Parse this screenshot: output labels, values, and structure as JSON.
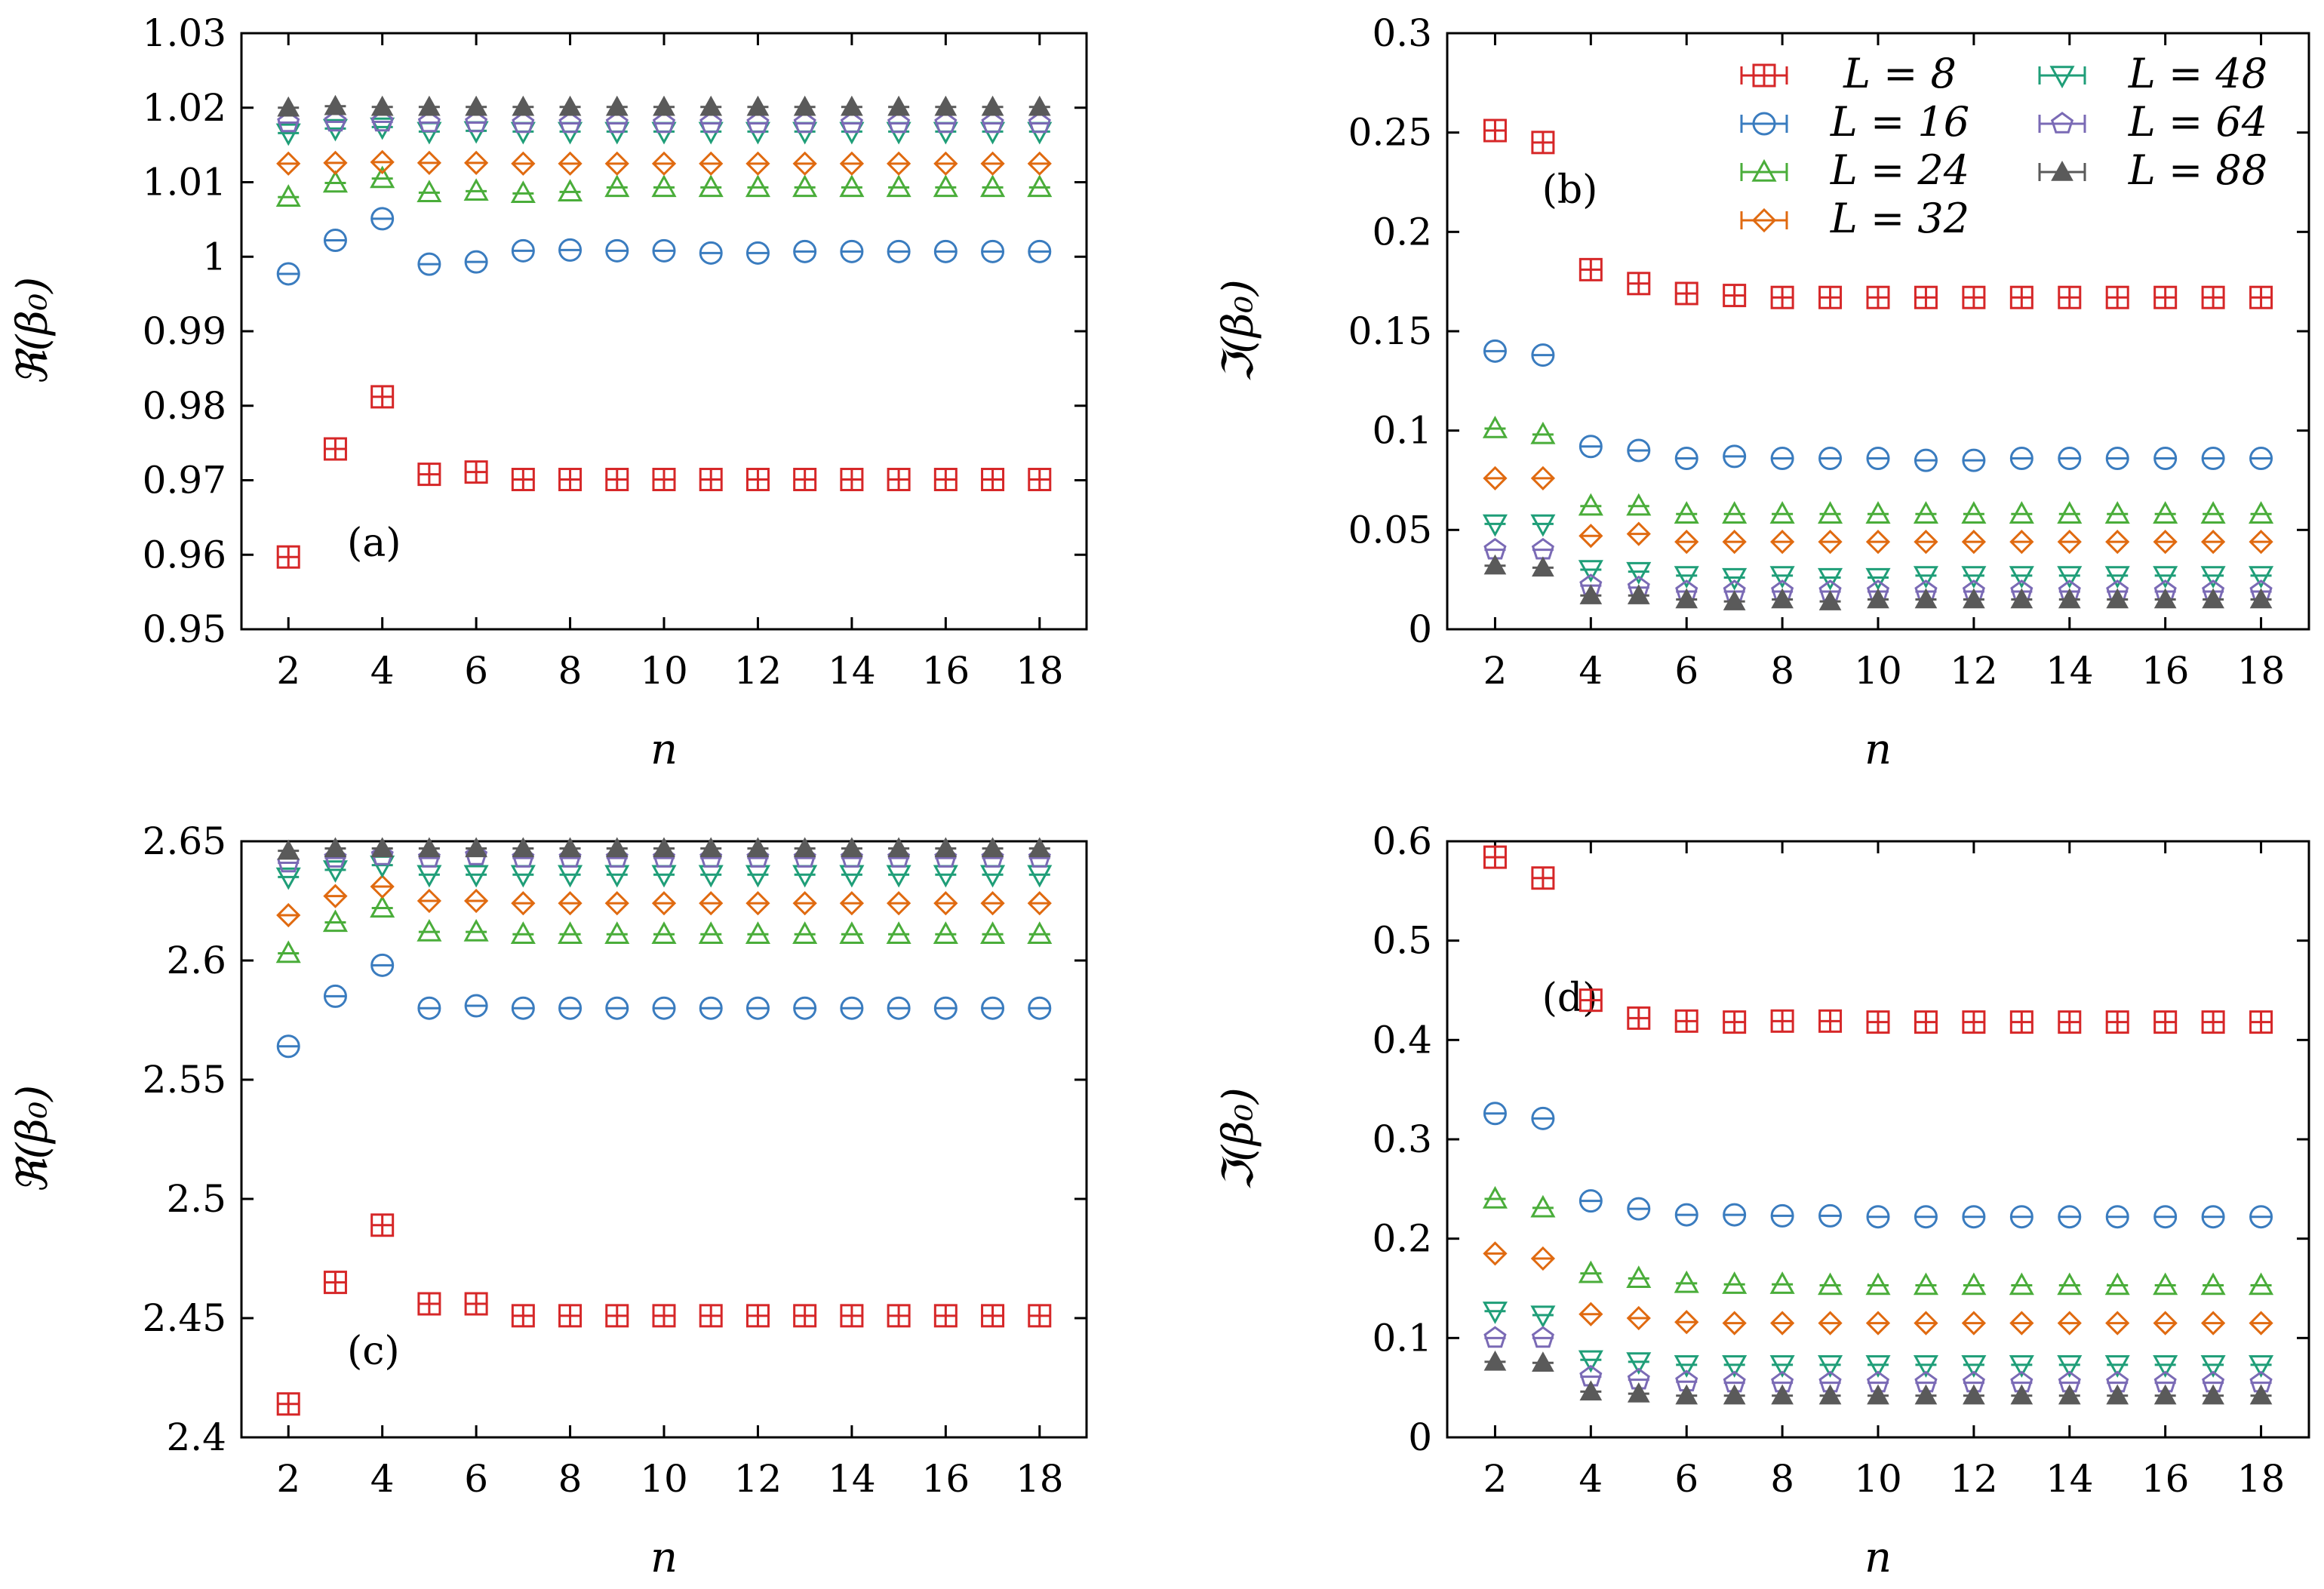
{
  "chart_data": [
    {
      "id": "a",
      "type": "scatter",
      "panel_label": "(a)",
      "xlabel": "n",
      "ylabel": "ℜ(β₀)",
      "xlim": [
        1,
        19
      ],
      "ylim": [
        0.95,
        1.03
      ],
      "xticks": [
        2,
        4,
        6,
        8,
        10,
        12,
        14,
        16,
        18
      ],
      "yticks": [
        0.95,
        0.96,
        0.97,
        0.98,
        0.99,
        1.0,
        1.01,
        1.02,
        1.03
      ],
      "ytick_labels": [
        "0.95",
        "0.96",
        "0.97",
        "0.98",
        "0.99",
        "1",
        "1.01",
        "1.02",
        "1.03"
      ],
      "label_position": "bottom-left",
      "x": [
        2,
        3,
        4,
        5,
        6,
        7,
        8,
        9,
        10,
        11,
        12,
        13,
        14,
        15,
        16,
        17,
        18
      ],
      "series": [
        {
          "name": "L = 8",
          "values": [
            0.9597,
            0.9742,
            0.9812,
            0.9708,
            0.9711,
            0.9701,
            0.9701,
            0.9701,
            0.9701,
            0.9701,
            0.9701,
            0.9701,
            0.9701,
            0.9701,
            0.9701,
            0.9701,
            0.9701
          ]
        },
        {
          "name": "L = 16",
          "values": [
            0.9977,
            1.0022,
            1.0051,
            0.999,
            0.9993,
            1.0008,
            1.0009,
            1.0008,
            1.0008,
            1.0005,
            1.0005,
            1.0007,
            1.0007,
            1.0007,
            1.0007,
            1.0007,
            1.0007
          ]
        },
        {
          "name": "L = 24",
          "values": [
            1.008,
            1.0099,
            1.0105,
            1.0086,
            1.0088,
            1.0085,
            1.0087,
            1.0093,
            1.0093,
            1.0093,
            1.0093,
            1.0093,
            1.0093,
            1.0093,
            1.0093,
            1.0093,
            1.0093
          ]
        },
        {
          "name": "L = 32",
          "values": [
            1.0125,
            1.0126,
            1.0127,
            1.0126,
            1.0126,
            1.0125,
            1.0125,
            1.0125,
            1.0125,
            1.0125,
            1.0125,
            1.0125,
            1.0125,
            1.0125,
            1.0125,
            1.0125,
            1.0125
          ]
        },
        {
          "name": "L = 48",
          "values": [
            1.0166,
            1.0172,
            1.0174,
            1.0168,
            1.0169,
            1.0168,
            1.0168,
            1.0168,
            1.0168,
            1.0168,
            1.0168,
            1.0168,
            1.0168,
            1.0168,
            1.0168,
            1.0168,
            1.0168
          ]
        },
        {
          "name": "L = 64",
          "values": [
            1.018,
            1.0181,
            1.0181,
            1.018,
            1.018,
            1.0179,
            1.0179,
            1.0179,
            1.0179,
            1.0179,
            1.0179,
            1.0179,
            1.0179,
            1.0179,
            1.0179,
            1.0179,
            1.0179
          ]
        },
        {
          "name": "L = 88",
          "values": [
            1.02,
            1.0202,
            1.0201,
            1.0201,
            1.0201,
            1.0201,
            1.0201,
            1.0201,
            1.0201,
            1.0201,
            1.0201,
            1.0201,
            1.0201,
            1.0201,
            1.0201,
            1.0201,
            1.0201
          ]
        }
      ]
    },
    {
      "id": "b",
      "type": "scatter",
      "panel_label": "(b)",
      "xlabel": "n",
      "ylabel": "ℑ(β₀)",
      "xlim": [
        1,
        19
      ],
      "ylim": [
        0,
        0.3
      ],
      "xticks": [
        2,
        4,
        6,
        8,
        10,
        12,
        14,
        16,
        18
      ],
      "yticks": [
        0,
        0.05,
        0.1,
        0.15,
        0.2,
        0.25,
        0.3
      ],
      "ytick_labels": [
        "0",
        "0.05",
        "0.1",
        "0.15",
        "0.2",
        "0.25",
        "0.3"
      ],
      "label_position": "top-left",
      "legend": "top-right",
      "x": [
        2,
        3,
        4,
        5,
        6,
        7,
        8,
        9,
        10,
        11,
        12,
        13,
        14,
        15,
        16,
        17,
        18
      ],
      "series": [
        {
          "name": "L = 8",
          "values": [
            0.251,
            0.245,
            0.181,
            0.174,
            0.169,
            0.168,
            0.167,
            0.167,
            0.167,
            0.167,
            0.167,
            0.167,
            0.167,
            0.167,
            0.167,
            0.167,
            0.167
          ]
        },
        {
          "name": "L = 16",
          "values": [
            0.14,
            0.138,
            0.092,
            0.09,
            0.086,
            0.087,
            0.086,
            0.086,
            0.086,
            0.085,
            0.085,
            0.086,
            0.086,
            0.086,
            0.086,
            0.086,
            0.086
          ]
        },
        {
          "name": "L = 24",
          "values": [
            0.101,
            0.098,
            0.062,
            0.062,
            0.058,
            0.058,
            0.058,
            0.058,
            0.058,
            0.058,
            0.058,
            0.058,
            0.058,
            0.058,
            0.058,
            0.058,
            0.058
          ]
        },
        {
          "name": "L = 32",
          "values": [
            0.076,
            0.076,
            0.047,
            0.048,
            0.044,
            0.044,
            0.044,
            0.044,
            0.044,
            0.044,
            0.044,
            0.044,
            0.044,
            0.044,
            0.044,
            0.044,
            0.044
          ]
        },
        {
          "name": "L = 48",
          "values": [
            0.053,
            0.053,
            0.03,
            0.029,
            0.027,
            0.026,
            0.027,
            0.026,
            0.026,
            0.027,
            0.027,
            0.027,
            0.027,
            0.027,
            0.027,
            0.027,
            0.027
          ]
        },
        {
          "name": "L = 64",
          "values": [
            0.04,
            0.04,
            0.022,
            0.021,
            0.019,
            0.019,
            0.019,
            0.019,
            0.019,
            0.019,
            0.019,
            0.019,
            0.019,
            0.019,
            0.019,
            0.019,
            0.019
          ]
        },
        {
          "name": "L = 88",
          "values": [
            0.032,
            0.031,
            0.017,
            0.017,
            0.015,
            0.014,
            0.015,
            0.014,
            0.015,
            0.015,
            0.015,
            0.015,
            0.015,
            0.015,
            0.015,
            0.015,
            0.015
          ]
        }
      ]
    },
    {
      "id": "c",
      "type": "scatter",
      "panel_label": "(c)",
      "xlabel": "n",
      "ylabel": "ℜ(β₀)",
      "xlim": [
        1,
        19
      ],
      "ylim": [
        2.4,
        2.65
      ],
      "xticks": [
        2,
        4,
        6,
        8,
        10,
        12,
        14,
        16,
        18
      ],
      "yticks": [
        2.4,
        2.45,
        2.5,
        2.55,
        2.6,
        2.65
      ],
      "ytick_labels": [
        "2.4",
        "2.45",
        "2.5",
        "2.55",
        "2.6",
        "2.65"
      ],
      "label_position": "bottom-left",
      "x": [
        2,
        3,
        4,
        5,
        6,
        7,
        8,
        9,
        10,
        11,
        12,
        13,
        14,
        15,
        16,
        17,
        18
      ],
      "series": [
        {
          "name": "L = 8",
          "values": [
            2.414,
            2.465,
            2.489,
            2.456,
            2.456,
            2.451,
            2.451,
            2.451,
            2.451,
            2.451,
            2.451,
            2.451,
            2.451,
            2.451,
            2.451,
            2.451,
            2.451
          ]
        },
        {
          "name": "L = 16",
          "values": [
            2.564,
            2.585,
            2.598,
            2.58,
            2.581,
            2.58,
            2.58,
            2.58,
            2.58,
            2.58,
            2.58,
            2.58,
            2.58,
            2.58,
            2.58,
            2.58,
            2.58
          ]
        },
        {
          "name": "L = 24",
          "values": [
            2.603,
            2.616,
            2.622,
            2.612,
            2.612,
            2.611,
            2.611,
            2.611,
            2.611,
            2.611,
            2.611,
            2.611,
            2.611,
            2.611,
            2.611,
            2.611,
            2.611
          ]
        },
        {
          "name": "L = 32",
          "values": [
            2.619,
            2.627,
            2.631,
            2.625,
            2.625,
            2.624,
            2.624,
            2.624,
            2.624,
            2.624,
            2.624,
            2.624,
            2.624,
            2.624,
            2.624,
            2.624,
            2.624
          ]
        },
        {
          "name": "L = 48",
          "values": [
            2.635,
            2.638,
            2.64,
            2.636,
            2.636,
            2.636,
            2.636,
            2.636,
            2.636,
            2.636,
            2.636,
            2.636,
            2.636,
            2.636,
            2.636,
            2.636,
            2.636
          ]
        },
        {
          "name": "L = 64",
          "values": [
            2.641,
            2.643,
            2.644,
            2.643,
            2.644,
            2.643,
            2.643,
            2.643,
            2.643,
            2.643,
            2.643,
            2.643,
            2.643,
            2.643,
            2.643,
            2.643,
            2.643
          ]
        },
        {
          "name": "L = 88",
          "values": [
            2.646,
            2.647,
            2.647,
            2.647,
            2.647,
            2.647,
            2.647,
            2.647,
            2.647,
            2.647,
            2.647,
            2.647,
            2.647,
            2.647,
            2.647,
            2.647,
            2.647
          ]
        }
      ]
    },
    {
      "id": "d",
      "type": "scatter",
      "panel_label": "(d)",
      "xlabel": "n",
      "ylabel": "ℑ(β₀)",
      "xlim": [
        1,
        19
      ],
      "ylim": [
        0,
        0.6
      ],
      "xticks": [
        2,
        4,
        6,
        8,
        10,
        12,
        14,
        16,
        18
      ],
      "yticks": [
        0,
        0.1,
        0.2,
        0.3,
        0.4,
        0.5,
        0.6
      ],
      "ytick_labels": [
        "0",
        "0.1",
        "0.2",
        "0.3",
        "0.4",
        "0.5",
        "0.6"
      ],
      "label_position": "top-left",
      "x": [
        2,
        3,
        4,
        5,
        6,
        7,
        8,
        9,
        10,
        11,
        12,
        13,
        14,
        15,
        16,
        17,
        18
      ],
      "series": [
        {
          "name": "L = 8",
          "values": [
            0.584,
            0.563,
            0.44,
            0.422,
            0.419,
            0.418,
            0.419,
            0.419,
            0.418,
            0.418,
            0.418,
            0.418,
            0.418,
            0.418,
            0.418,
            0.418,
            0.418
          ]
        },
        {
          "name": "L = 16",
          "values": [
            0.326,
            0.321,
            0.238,
            0.23,
            0.224,
            0.224,
            0.223,
            0.223,
            0.222,
            0.222,
            0.222,
            0.222,
            0.222,
            0.222,
            0.222,
            0.222,
            0.222
          ]
        },
        {
          "name": "L = 24",
          "values": [
            0.24,
            0.231,
            0.165,
            0.16,
            0.155,
            0.154,
            0.154,
            0.153,
            0.153,
            0.153,
            0.153,
            0.153,
            0.153,
            0.153,
            0.153,
            0.153,
            0.153
          ]
        },
        {
          "name": "L = 32",
          "values": [
            0.185,
            0.18,
            0.124,
            0.12,
            0.116,
            0.115,
            0.115,
            0.115,
            0.115,
            0.115,
            0.115,
            0.115,
            0.115,
            0.115,
            0.115,
            0.115,
            0.115
          ]
        },
        {
          "name": "L = 48",
          "values": [
            0.127,
            0.123,
            0.078,
            0.076,
            0.073,
            0.073,
            0.073,
            0.073,
            0.073,
            0.073,
            0.073,
            0.073,
            0.073,
            0.073,
            0.073,
            0.073,
            0.073
          ]
        },
        {
          "name": "L = 64",
          "values": [
            0.1,
            0.1,
            0.061,
            0.058,
            0.056,
            0.055,
            0.055,
            0.055,
            0.055,
            0.055,
            0.055,
            0.055,
            0.055,
            0.055,
            0.055,
            0.055,
            0.055
          ]
        },
        {
          "name": "L = 88",
          "values": [
            0.076,
            0.075,
            0.046,
            0.044,
            0.042,
            0.042,
            0.042,
            0.042,
            0.042,
            0.042,
            0.042,
            0.042,
            0.042,
            0.042,
            0.042,
            0.042,
            0.042
          ]
        }
      ]
    }
  ],
  "legend": [
    {
      "name": "L = 8",
      "label": "L = 8",
      "color": "#d62728",
      "marker": "square-plus"
    },
    {
      "name": "L = 16",
      "label": "L = 16",
      "color": "#3a7cbf",
      "marker": "circle"
    },
    {
      "name": "L = 24",
      "label": "L = 24",
      "color": "#4aad3a",
      "marker": "triangle-up"
    },
    {
      "name": "L = 32",
      "label": "L = 32",
      "color": "#e06a10",
      "marker": "diamond"
    },
    {
      "name": "L = 48",
      "label": "L = 48",
      "color": "#1f9e78",
      "marker": "triangle-down"
    },
    {
      "name": "L = 64",
      "label": "L = 64",
      "color": "#7a6ab5",
      "marker": "pentagon"
    },
    {
      "name": "L = 88",
      "label": "L = 88",
      "color": "#5a5a5a",
      "marker": "triangle-filled"
    }
  ]
}
